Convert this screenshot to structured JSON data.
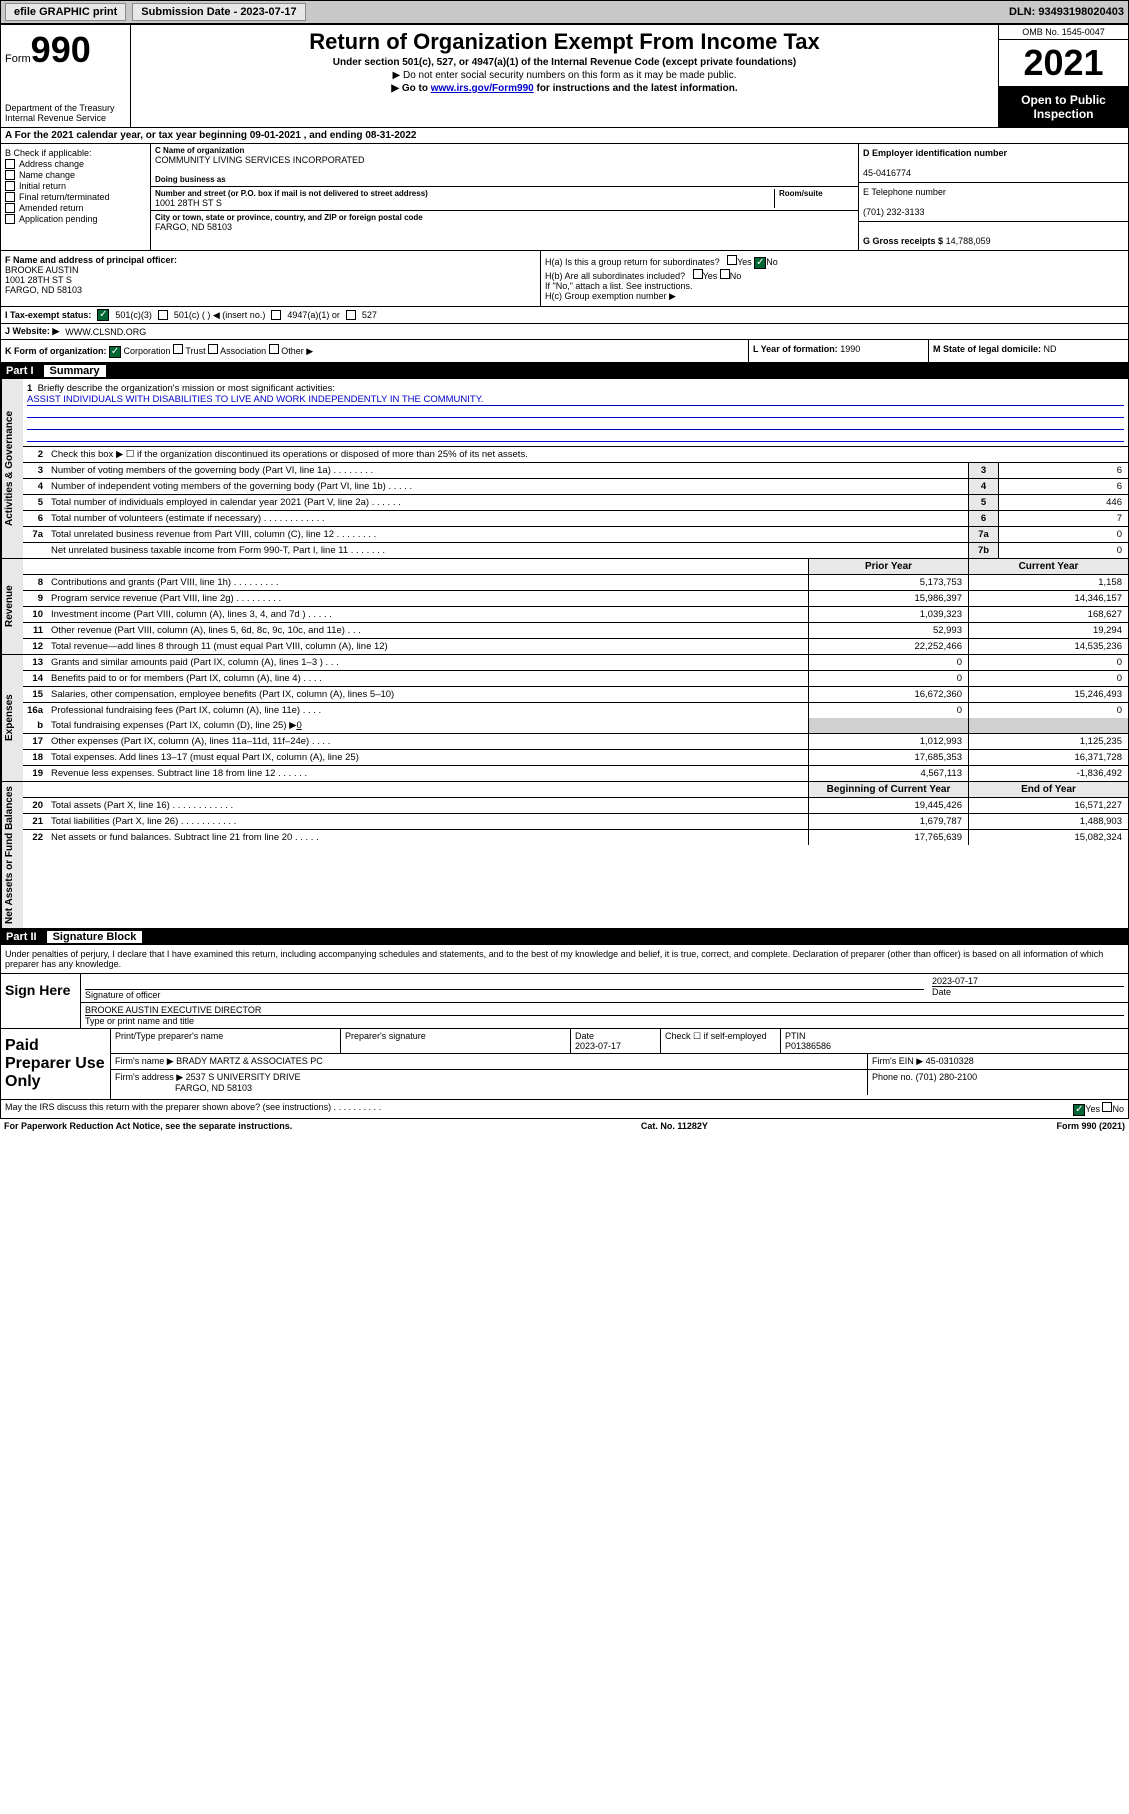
{
  "topbar": {
    "efile": "efile GRAPHIC print",
    "submission": "Submission Date - 2023-07-17",
    "dln": "DLN: 93493198020403"
  },
  "header": {
    "form_word": "Form",
    "form_num": "990",
    "dept": "Department of the Treasury Internal Revenue Service",
    "title": "Return of Organization Exempt From Income Tax",
    "sub1": "Under section 501(c), 527, or 4947(a)(1) of the Internal Revenue Code (except private foundations)",
    "sub2a": "▶ Do not enter social security numbers on this form as it may be made public.",
    "sub2b_pre": "▶ Go to ",
    "sub2b_link": "www.irs.gov/Form990",
    "sub2b_post": " for instructions and the latest information.",
    "omb": "OMB No. 1545-0047",
    "year": "2021",
    "open": "Open to Public Inspection"
  },
  "rowA": "A For the 2021 calendar year, or tax year beginning 09-01-2021  , and ending 08-31-2022",
  "colB": {
    "label": "B Check if applicable:",
    "items": [
      "Address change",
      "Name change",
      "Initial return",
      "Final return/terminated",
      "Amended return",
      "Application pending"
    ]
  },
  "colC": {
    "name_label": "C Name of organization",
    "name": "COMMUNITY LIVING SERVICES INCORPORATED",
    "dba_label": "Doing business as",
    "dba": "",
    "addr_label": "Number and street (or P.O. box if mail is not delivered to street address)",
    "room_label": "Room/suite",
    "addr": "1001 28TH ST S",
    "city_label": "City or town, state or province, country, and ZIP or foreign postal code",
    "city": "FARGO, ND  58103"
  },
  "colD": {
    "ein_label": "D Employer identification number",
    "ein": "45-0416774",
    "tel_label": "E Telephone number",
    "tel": "(701) 232-3133",
    "gross_label": "G Gross receipts $",
    "gross": "14,788,059"
  },
  "rowF": {
    "label": "F  Name and address of principal officer:",
    "name": "BROOKE AUSTIN",
    "addr1": "1001 28TH ST S",
    "addr2": "FARGO, ND  58103"
  },
  "rowH": {
    "ha": "H(a)  Is this a group return for subordinates?",
    "hb": "H(b)  Are all subordinates included?",
    "hb_note": "If \"No,\" attach a list. See instructions.",
    "hc": "H(c)  Group exemption number ▶"
  },
  "rowI": {
    "label": "I  Tax-exempt status:",
    "opt1": "501(c)(3)",
    "opt2": "501(c) (   ) ◀ (insert no.)",
    "opt3": "4947(a)(1) or",
    "opt4": "527"
  },
  "rowJ": {
    "label": "J  Website: ▶",
    "val": "WWW.CLSND.ORG"
  },
  "rowK": {
    "k1": "K Form of organization:",
    "corp": "Corporation",
    "trust": "Trust",
    "assoc": "Association",
    "other": "Other ▶",
    "l_label": "L Year of formation:",
    "l_val": "1990",
    "m_label": "M State of legal domicile:",
    "m_val": "ND"
  },
  "part1": {
    "header_num": "Part I",
    "header_title": "Summary",
    "vert_activities": "Activities & Governance",
    "vert_revenue": "Revenue",
    "vert_expenses": "Expenses",
    "vert_netassets": "Net Assets or Fund Balances",
    "line1_label": "Briefly describe the organization's mission or most significant activities:",
    "line1_mission": "ASSIST INDIVIDUALS WITH DISABILITIES TO LIVE AND WORK INDEPENDENTLY IN THE COMMUNITY.",
    "line2": "Check this box ▶ ☐  if the organization discontinued its operations or disposed of more than 25% of its net assets.",
    "lines_gov": [
      {
        "n": "3",
        "t": "Number of voting members of the governing body (Part VI, line 1a)  .    .    .    .    .    .    .    .",
        "b": "3",
        "v": "6"
      },
      {
        "n": "4",
        "t": "Number of independent voting members of the governing body (Part VI, line 1b)  .    .    .    .    .",
        "b": "4",
        "v": "6"
      },
      {
        "n": "5",
        "t": "Total number of individuals employed in calendar year 2021 (Part V, line 2a)  .    .    .    .    .    .",
        "b": "5",
        "v": "446"
      },
      {
        "n": "6",
        "t": "Total number of volunteers (estimate if necessary)  .    .    .    .    .    .    .    .    .    .    .    .",
        "b": "6",
        "v": "7"
      },
      {
        "n": "7a",
        "t": "Total unrelated business revenue from Part VIII, column (C), line 12  .    .    .    .    .    .    .    .",
        "b": "7a",
        "v": "0"
      },
      {
        "n": "",
        "t": "Net unrelated business taxable income from Form 990-T, Part I, line 11  .    .    .    .    .    .    .",
        "b": "7b",
        "v": "0"
      }
    ],
    "col_prior": "Prior Year",
    "col_curr": "Current Year",
    "lines_rev": [
      {
        "n": "8",
        "t": "Contributions and grants (Part VIII, line 1h)  .    .    .    .    .    .    .    .    .",
        "p": "5,173,753",
        "c": "1,158"
      },
      {
        "n": "9",
        "t": "Program service revenue (Part VIII, line 2g)  .    .    .    .    .    .    .    .    .",
        "p": "15,986,397",
        "c": "14,346,157"
      },
      {
        "n": "10",
        "t": "Investment income (Part VIII, column (A), lines 3, 4, and 7d )  .    .    .    .    .",
        "p": "1,039,323",
        "c": "168,627"
      },
      {
        "n": "11",
        "t": "Other revenue (Part VIII, column (A), lines 5, 6d, 8c, 9c, 10c, and 11e)  .    .    .",
        "p": "52,993",
        "c": "19,294"
      },
      {
        "n": "12",
        "t": "Total revenue—add lines 8 through 11 (must equal Part VIII, column (A), line 12)",
        "p": "22,252,466",
        "c": "14,535,236"
      }
    ],
    "lines_exp": [
      {
        "n": "13",
        "t": "Grants and similar amounts paid (Part IX, column (A), lines 1–3 )  .    .    .",
        "p": "0",
        "c": "0"
      },
      {
        "n": "14",
        "t": "Benefits paid to or for members (Part IX, column (A), line 4)  .    .    .    .",
        "p": "0",
        "c": "0"
      },
      {
        "n": "15",
        "t": "Salaries, other compensation, employee benefits (Part IX, column (A), lines 5–10)",
        "p": "16,672,360",
        "c": "15,246,493"
      },
      {
        "n": "16a",
        "t": "Professional fundraising fees (Part IX, column (A), line 11e)  .    .    .    .",
        "p": "0",
        "c": "0"
      }
    ],
    "line16b": {
      "n": "b",
      "t": "Total fundraising expenses (Part IX, column (D), line 25) ▶",
      "v": "0"
    },
    "lines_exp2": [
      {
        "n": "17",
        "t": "Other expenses (Part IX, column (A), lines 11a–11d, 11f–24e)  .    .    .    .",
        "p": "1,012,993",
        "c": "1,125,235"
      },
      {
        "n": "18",
        "t": "Total expenses. Add lines 13–17 (must equal Part IX, column (A), line 25)",
        "p": "17,685,353",
        "c": "16,371,728"
      },
      {
        "n": "19",
        "t": "Revenue less expenses. Subtract line 18 from line 12  .    .    .    .    .    .",
        "p": "4,567,113",
        "c": "-1,836,492"
      }
    ],
    "col_begin": "Beginning of Current Year",
    "col_end": "End of Year",
    "lines_net": [
      {
        "n": "20",
        "t": "Total assets (Part X, line 16)  .    .    .    .    .    .    .    .    .    .    .    .",
        "p": "19,445,426",
        "c": "16,571,227"
      },
      {
        "n": "21",
        "t": "Total liabilities (Part X, line 26)  .    .    .    .    .    .    .    .    .    .    .",
        "p": "1,679,787",
        "c": "1,488,903"
      },
      {
        "n": "22",
        "t": "Net assets or fund balances. Subtract line 21 from line 20  .    .    .    .    .",
        "p": "17,765,639",
        "c": "15,082,324"
      }
    ]
  },
  "part2": {
    "header_num": "Part II",
    "header_title": "Signature Block",
    "penalties": "Under penalties of perjury, I declare that I have examined this return, including accompanying schedules and statements, and to the best of my knowledge and belief, it is true, correct, and complete. Declaration of preparer (other than officer) is based on all information of which preparer has any knowledge.",
    "sign_here": "Sign Here",
    "sig_officer": "Signature of officer",
    "sig_date": "2023-07-17",
    "date_label": "Date",
    "officer_name": "BROOKE AUSTIN  EXECUTIVE DIRECTOR",
    "type_label": "Type or print name and title",
    "paid": "Paid Preparer Use Only",
    "prep_name_label": "Print/Type preparer's name",
    "prep_sig_label": "Preparer's signature",
    "prep_date_label": "Date",
    "prep_date": "2023-07-17",
    "check_self": "Check ☐ if self-employed",
    "ptin_label": "PTIN",
    "ptin": "P01386586",
    "firm_name_label": "Firm's name    ▶",
    "firm_name": "BRADY MARTZ & ASSOCIATES PC",
    "firm_ein_label": "Firm's EIN ▶",
    "firm_ein": "45-0310328",
    "firm_addr_label": "Firm's address ▶",
    "firm_addr1": "2537 S UNIVERSITY DRIVE",
    "firm_addr2": "FARGO, ND  58103",
    "phone_label": "Phone no.",
    "phone": "(701) 280-2100",
    "discuss": "May the IRS discuss this return with the preparer shown above? (see instructions)  .    .    .    .    .    .    .    .    .    .",
    "yes": "Yes",
    "no": "No"
  },
  "footer": {
    "paperwork": "For Paperwork Reduction Act Notice, see the separate instructions.",
    "cat": "Cat. No. 11282Y",
    "form": "Form 990 (2021)"
  },
  "colors": {
    "link": "#0000cc",
    "check_green": "#006633",
    "shade": "#e8e8e8"
  }
}
